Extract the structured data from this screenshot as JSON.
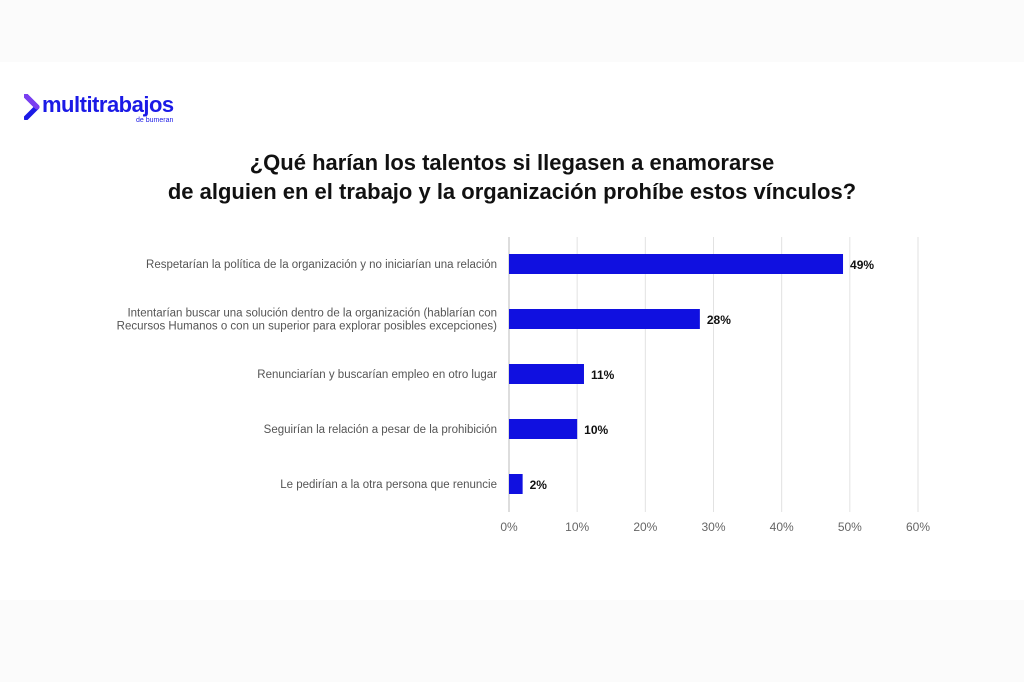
{
  "brand": {
    "name": "multitrabajos",
    "tagline": "de bumeran",
    "color": "#1b1ae6"
  },
  "title_lines": [
    "¿Qué harían los talentos si llegasen a enamorarse",
    "de alguien en el trabajo y la organización prohíbe estos vínculos?"
  ],
  "chart_data": {
    "type": "bar",
    "orientation": "horizontal",
    "title": "¿Qué harían los talentos si llegasen a enamorarse de alguien en el trabajo y la organización prohíbe estos vínculos?",
    "categories": [
      [
        "Respetarían la política de la organización y no iniciarían una relación"
      ],
      [
        "Intentarían buscar una solución dentro de la organización (hablarían con",
        "Recursos Humanos o con un superior para explorar posibles excepciones)"
      ],
      [
        "Renunciarían y buscarían empleo en otro lugar"
      ],
      [
        "Seguirían la relación a pesar de la prohibición"
      ],
      [
        "Le pedirían a la otra persona que renuncie"
      ]
    ],
    "values": [
      49,
      28,
      11,
      10,
      2
    ],
    "value_labels": [
      "49%",
      "28%",
      "11%",
      "10%",
      "2%"
    ],
    "xlim": [
      0,
      60
    ],
    "xticks": [
      0,
      10,
      20,
      30,
      40,
      50,
      60
    ],
    "xtick_labels": [
      "0%",
      "10%",
      "20%",
      "30%",
      "40%",
      "50%",
      "60%"
    ],
    "bar_color": "#1010e0",
    "grid": true
  }
}
